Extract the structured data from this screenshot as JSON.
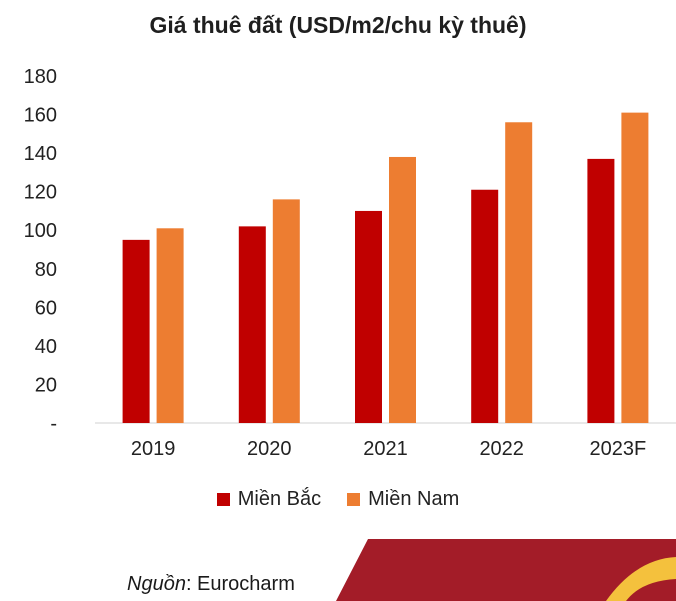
{
  "chart_data": {
    "type": "bar",
    "title": "Giá thuê đất (USD/m2/chu kỳ thuê)",
    "categories": [
      "2019",
      "2020",
      "2021",
      "2022",
      "2023F"
    ],
    "series": [
      {
        "name": "Miền Bắc",
        "color": "#c00000",
        "values": [
          95,
          102,
          110,
          121,
          137
        ]
      },
      {
        "name": "Miền Nam",
        "color": "#ed7d31",
        "values": [
          101,
          116,
          138,
          156,
          161
        ]
      }
    ],
    "yticks": [
      "-",
      "20",
      "40",
      "60",
      "80",
      "100",
      "120",
      "140",
      "160",
      "180"
    ],
    "ylim": [
      0,
      180
    ],
    "grid": false,
    "legend_position": "bottom"
  },
  "source": {
    "label": "Nguồn",
    "text": ": Eurocharm"
  },
  "colors": {
    "decor_dark": "#a31c28",
    "decor_light": "#f4c13d"
  }
}
